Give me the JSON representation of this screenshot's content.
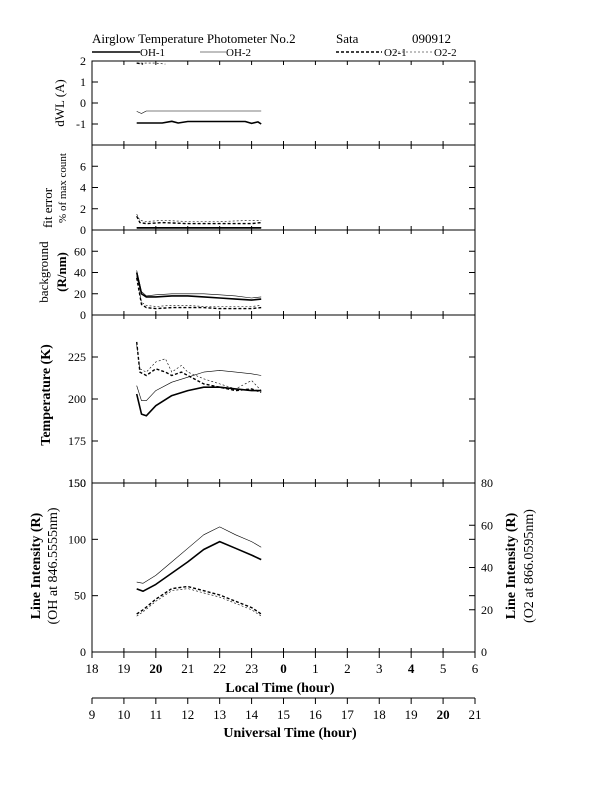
{
  "header": {
    "title": "Airglow Temperature Photometer No.2",
    "site": "Sata",
    "date": "090912"
  },
  "legend": [
    {
      "label": "OH-1",
      "style": "solid-thick"
    },
    {
      "label": "OH-2",
      "style": "solid-thin"
    },
    {
      "label": "O2-1",
      "style": "dash-thick"
    },
    {
      "label": "O2-2",
      "style": "dash-thin"
    }
  ],
  "chart_data": [
    {
      "type": "line",
      "panel": "dWL",
      "ylabel_lines": [
        "dWL (A)"
      ],
      "ylim": [
        -2,
        2
      ],
      "yticks": [
        -1,
        0,
        1,
        2
      ],
      "series": [
        {
          "name": "OH-1",
          "x": [
            19.4,
            20.2,
            20.5,
            20.7,
            21.0,
            22.0,
            22.8,
            23.0,
            23.2,
            23.3
          ],
          "y": [
            -0.95,
            -0.95,
            -0.87,
            -0.95,
            -0.88,
            -0.88,
            -0.88,
            -0.97,
            -0.9,
            -1.0
          ]
        },
        {
          "name": "OH-2",
          "x": [
            19.4,
            19.55,
            19.7,
            20.5,
            21.5,
            22.5,
            23.3
          ],
          "y": [
            -0.4,
            -0.5,
            -0.38,
            -0.38,
            -0.38,
            -0.38,
            -0.38
          ]
        },
        {
          "name": "O2-1",
          "x": [
            19.4,
            19.6
          ],
          "y": [
            1.9,
            1.85
          ]
        },
        {
          "name": "O2-2",
          "x": [
            19.4,
            20.0,
            20.3
          ],
          "y": [
            1.9,
            1.9,
            1.85
          ]
        }
      ]
    },
    {
      "type": "line",
      "panel": "fit error",
      "ylabel_lines": [
        "fit error",
        "% of max count"
      ],
      "ylim": [
        0,
        8
      ],
      "yticks": [
        0,
        2,
        4,
        6
      ],
      "series": [
        {
          "name": "OH-1",
          "x": [
            19.4,
            21.0,
            23.3
          ],
          "y": [
            0.2,
            0.2,
            0.2
          ]
        },
        {
          "name": "OH-2",
          "x": [
            19.4,
            21.0,
            23.3
          ],
          "y": [
            0.25,
            0.25,
            0.25
          ]
        },
        {
          "name": "O2-1",
          "x": [
            19.4,
            19.5,
            19.7,
            20.2,
            21.0,
            22.0,
            23.0,
            23.3
          ],
          "y": [
            1.3,
            0.7,
            0.6,
            0.7,
            0.6,
            0.6,
            0.6,
            0.7
          ]
        },
        {
          "name": "O2-2",
          "x": [
            19.4,
            19.5,
            19.7,
            20.2,
            21.0,
            22.0,
            23.0,
            23.3
          ],
          "y": [
            1.5,
            0.9,
            0.8,
            0.9,
            0.8,
            0.8,
            0.9,
            0.9
          ]
        }
      ]
    },
    {
      "type": "line",
      "panel": "background",
      "ylabel_lines": [
        "background",
        "(R/nm)"
      ],
      "ylim": [
        0,
        80
      ],
      "yticks": [
        0,
        20,
        40,
        60
      ],
      "series": [
        {
          "name": "OH-1",
          "x": [
            19.4,
            19.55,
            19.7,
            20.0,
            20.5,
            21.0,
            21.5,
            22.0,
            22.5,
            23.0,
            23.3
          ],
          "y": [
            40,
            20,
            17,
            17,
            18,
            18,
            17,
            16,
            15,
            14,
            15
          ]
        },
        {
          "name": "OH-2",
          "x": [
            19.4,
            19.55,
            19.7,
            20.0,
            20.5,
            21.0,
            21.5,
            22.0,
            22.5,
            23.0,
            23.3
          ],
          "y": [
            42,
            22,
            18,
            19,
            20,
            20,
            20,
            19,
            18,
            16,
            17
          ]
        },
        {
          "name": "O2-1",
          "x": [
            19.4,
            19.55,
            19.7,
            20.0,
            20.5,
            21.0,
            21.5,
            22.0,
            22.5,
            23.0,
            23.3
          ],
          "y": [
            35,
            10,
            7,
            6,
            7,
            7,
            7,
            6,
            6,
            6,
            7
          ]
        },
        {
          "name": "O2-2",
          "x": [
            19.4,
            19.55,
            19.7,
            20.0,
            20.5,
            21.0,
            21.5,
            22.0,
            22.5,
            23.0,
            23.3
          ],
          "y": [
            37,
            12,
            9,
            8,
            9,
            9,
            8,
            8,
            8,
            8,
            9
          ]
        }
      ]
    },
    {
      "type": "line",
      "panel": "temperature",
      "ylabel_lines": [
        "Temperature (K)"
      ],
      "ylim": [
        150,
        250
      ],
      "yticks": [
        150,
        175,
        200,
        225
      ],
      "series": [
        {
          "name": "OH-1",
          "x": [
            19.4,
            19.55,
            19.7,
            20.0,
            20.5,
            21.0,
            21.5,
            22.0,
            22.5,
            23.0,
            23.3
          ],
          "y": [
            203,
            191,
            190,
            196,
            202,
            205,
            207,
            207,
            206,
            205,
            205
          ]
        },
        {
          "name": "OH-2",
          "x": [
            19.4,
            19.55,
            19.7,
            20.0,
            20.5,
            21.0,
            21.5,
            22.0,
            22.5,
            23.0,
            23.3
          ],
          "y": [
            208,
            199,
            199,
            205,
            210,
            213,
            216,
            217,
            216,
            215,
            214
          ]
        },
        {
          "name": "O2-1",
          "x": [
            19.4,
            19.5,
            19.7,
            20.0,
            20.3,
            20.5,
            20.8,
            21.0,
            21.5,
            22.0,
            22.5,
            23.0,
            23.3
          ],
          "y": [
            234,
            216,
            214,
            218,
            216,
            214,
            216,
            214,
            209,
            207,
            205,
            206,
            204
          ]
        },
        {
          "name": "O2-2",
          "x": [
            19.4,
            19.5,
            19.7,
            20.0,
            20.3,
            20.5,
            20.8,
            21.0,
            21.5,
            22.0,
            22.5,
            23.0,
            23.3
          ],
          "y": [
            232,
            218,
            216,
            222,
            224,
            216,
            220,
            216,
            212,
            209,
            206,
            211,
            205
          ]
        }
      ]
    },
    {
      "type": "line",
      "panel": "intensity",
      "ylabel_lines": [
        "Line Intensity (R)",
        "(OH at 846.5555nm)"
      ],
      "ylabel_right_lines": [
        "Line Intensity (R)",
        "(O2 at 866.0595nm)"
      ],
      "ylim": [
        0,
        150
      ],
      "y2lim": [
        0,
        80
      ],
      "yticks": [
        0,
        50,
        100,
        150
      ],
      "y2ticks": [
        0,
        20,
        40,
        60,
        80
      ],
      "series": [
        {
          "name": "OH-1",
          "axis": "left",
          "x": [
            19.4,
            19.6,
            20.0,
            20.5,
            21.0,
            21.5,
            22.0,
            22.5,
            23.0,
            23.3
          ],
          "y": [
            56,
            54,
            60,
            70,
            80,
            91,
            98,
            92,
            86,
            82
          ]
        },
        {
          "name": "OH-2",
          "axis": "left",
          "x": [
            19.4,
            19.6,
            20.0,
            20.5,
            21.0,
            21.5,
            22.0,
            22.5,
            23.0,
            23.3
          ],
          "y": [
            62,
            61,
            68,
            80,
            92,
            104,
            111,
            104,
            98,
            93
          ]
        },
        {
          "name": "O2-1",
          "axis": "right",
          "x": [
            19.4,
            19.6,
            20.0,
            20.5,
            21.0,
            21.5,
            22.0,
            22.5,
            23.0,
            23.3
          ],
          "y": [
            18,
            20,
            25,
            30,
            31,
            29,
            27,
            24,
            21,
            18
          ]
        },
        {
          "name": "O2-2",
          "axis": "right",
          "x": [
            19.4,
            19.6,
            20.0,
            20.5,
            21.0,
            21.5,
            22.0,
            22.5,
            23.0,
            23.3
          ],
          "y": [
            17,
            19,
            24,
            29,
            30,
            28,
            26,
            23,
            20,
            17
          ]
        }
      ]
    }
  ],
  "x_axes": {
    "xlim": [
      18,
      30
    ],
    "local": {
      "label": "Local Time (hour)",
      "ticks": [
        "18",
        "19",
        "20",
        "21",
        "22",
        "23",
        "0",
        "1",
        "2",
        "3",
        "4",
        "5",
        "6"
      ],
      "bold": [
        "20",
        "0",
        "4"
      ]
    },
    "universal": {
      "label": "Universal Time (hour)",
      "ticks": [
        "9",
        "10",
        "11",
        "12",
        "13",
        "14",
        "15",
        "16",
        "17",
        "18",
        "19",
        "20",
        "21"
      ],
      "bold": [
        "20"
      ]
    }
  }
}
